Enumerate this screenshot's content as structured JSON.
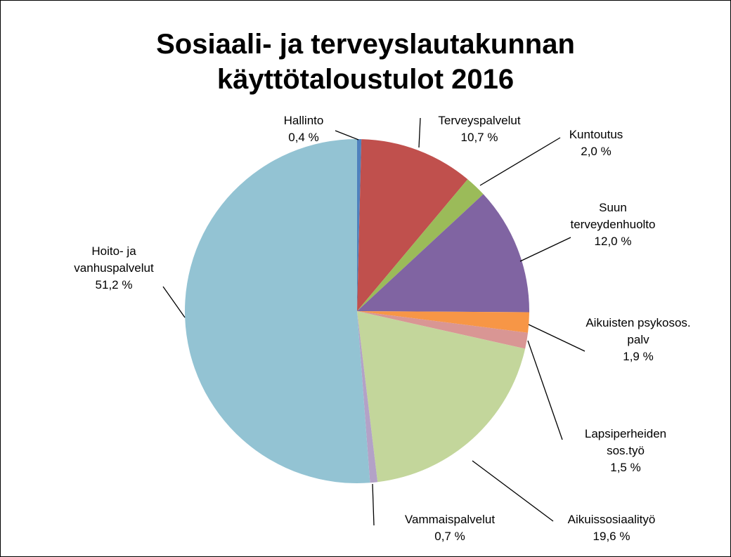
{
  "chart_data": {
    "type": "pie",
    "title": "Sosiaali- ja terveyslautakunnan käyttötaloustulot 2016",
    "categories": [
      "Hallinto",
      "Terveyspalvelut",
      "Kuntoutus",
      "Suun terveydenhuolto",
      "Aikuisten psykosos. palv",
      "Lapsiperheiden sos.työ",
      "Aikuissosiaalityö",
      "Vammaispalvelut",
      "Hoito- ja vanhuspalvelut"
    ],
    "values": [
      0.4,
      10.7,
      2.0,
      12.0,
      1.9,
      1.5,
      19.6,
      0.7,
      51.2
    ],
    "value_labels": [
      "0,4 %",
      "10,7 %",
      "2,0 %",
      "12,0 %",
      "1,9 %",
      "1,5 %",
      "19,6 %",
      "0,7 %",
      "51,2 %"
    ],
    "colors": [
      "#4f81bd",
      "#c0504d",
      "#9bbb59",
      "#8064a2",
      "#f79646",
      "#d99694",
      "#c3d69b",
      "#b3a2c7",
      "#93c3d3"
    ]
  }
}
